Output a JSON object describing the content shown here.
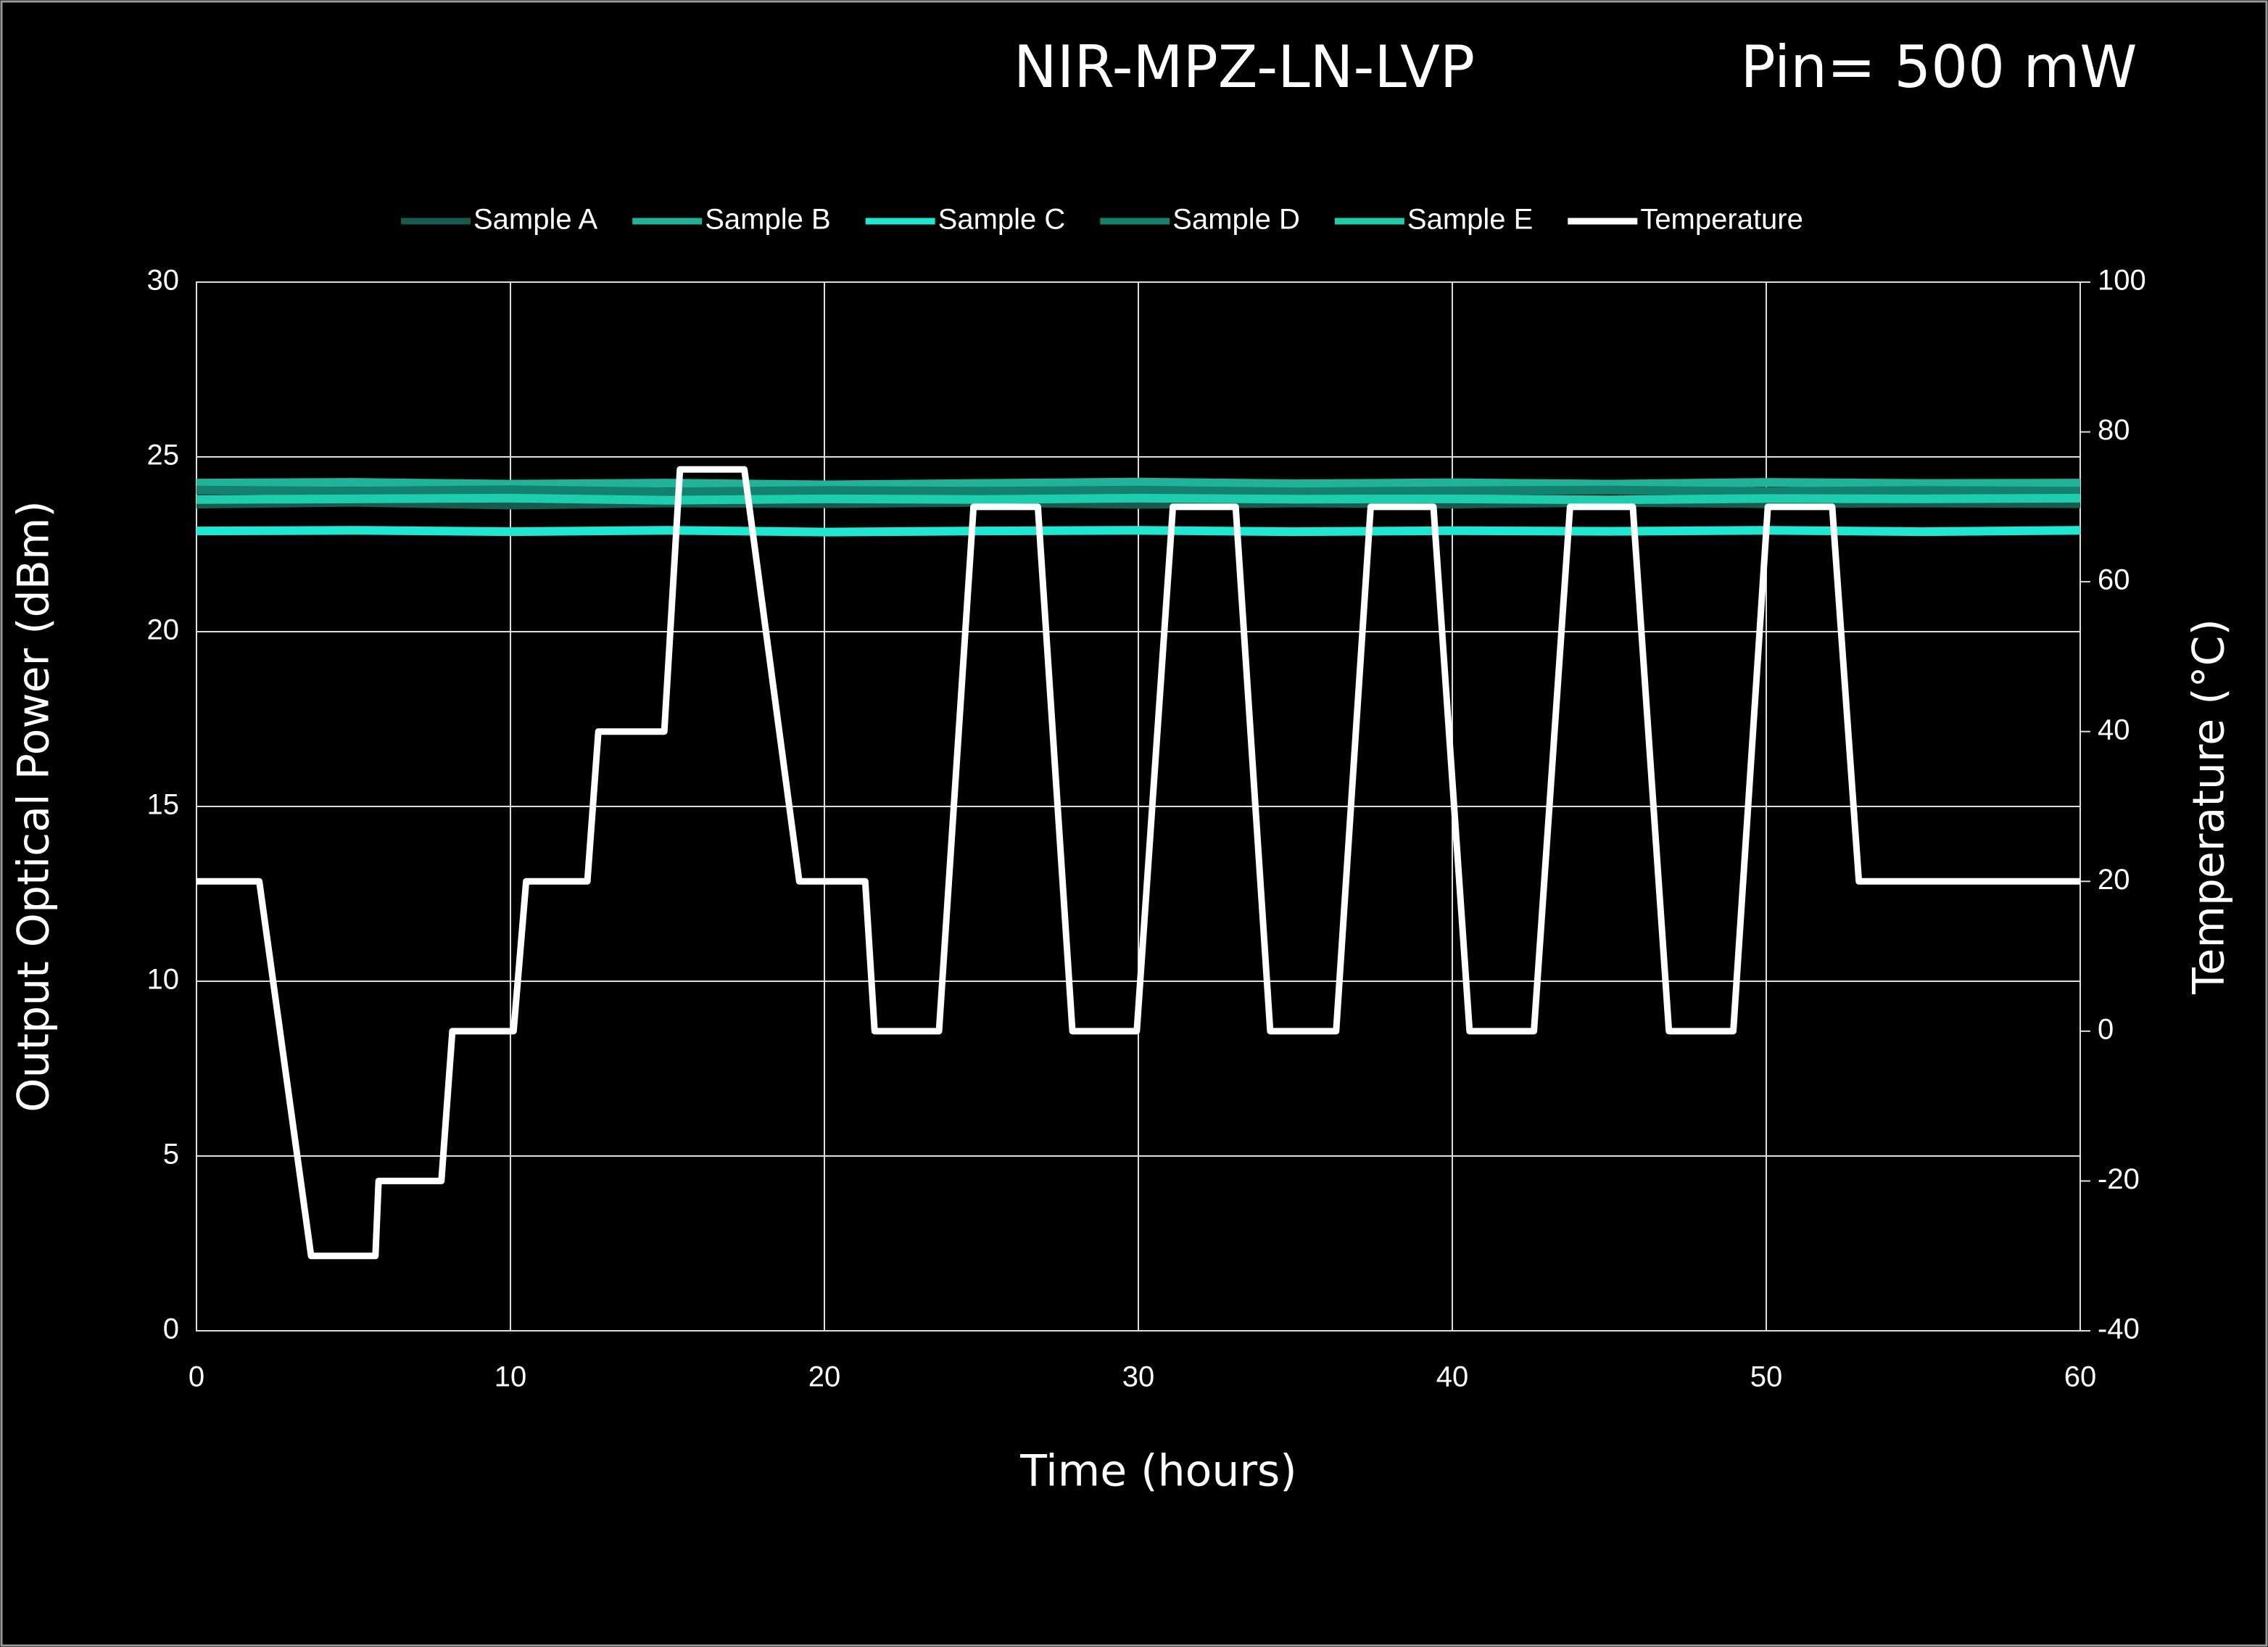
{
  "chart_data": {
    "type": "line",
    "title": "NIR-MPZ-LN-LVP",
    "annotation": "Pin= 500 mW",
    "x_label": "Time (hours)",
    "y_label": "Output Optical Power (dBm)",
    "y2_label": "Temperature (°C)",
    "x": [
      0,
      5,
      10,
      15,
      20,
      25,
      30,
      35,
      40,
      45,
      50,
      55,
      60
    ],
    "xlim": [
      0,
      60
    ],
    "xticks": [
      0,
      10,
      20,
      30,
      40,
      50,
      60
    ],
    "ylim": [
      0,
      30
    ],
    "yticks": [
      0,
      5,
      10,
      15,
      20,
      25,
      30
    ],
    "y2lim": [
      -40,
      100
    ],
    "y2ticks": [
      -40,
      -20,
      0,
      20,
      40,
      60,
      80,
      100
    ],
    "grid": true,
    "legend": "top",
    "series": [
      {
        "name": "Sample A",
        "color": "#175a4e",
        "values": [
          23.65,
          23.7,
          23.62,
          23.68,
          23.66,
          23.7,
          23.64,
          23.68,
          23.65,
          23.7,
          23.66,
          23.68,
          23.66
        ]
      },
      {
        "name": "Sample B",
        "color": "#1fb49a",
        "values": [
          24.25,
          24.27,
          24.22,
          24.25,
          24.2,
          24.24,
          24.28,
          24.23,
          24.26,
          24.22,
          24.27,
          24.24,
          24.25
        ]
      },
      {
        "name": "Sample C",
        "color": "#1de8d2",
        "values": [
          22.88,
          22.9,
          22.86,
          22.9,
          22.85,
          22.88,
          22.9,
          22.86,
          22.89,
          22.87,
          22.9,
          22.86,
          22.9
        ]
      },
      {
        "name": "Sample D",
        "color": "#14806e",
        "values": [
          24.05,
          24.02,
          24.06,
          24.0,
          24.04,
          24.02,
          24.05,
          24.0,
          24.03,
          24.05,
          24.01,
          24.04,
          24.02
        ]
      },
      {
        "name": "Sample E",
        "color": "#1cceae",
        "values": [
          23.78,
          23.8,
          23.82,
          23.76,
          23.8,
          23.78,
          23.82,
          23.79,
          23.8,
          23.77,
          23.81,
          23.8,
          23.82
        ]
      },
      {
        "name": "Temperature",
        "color": "#ffffff",
        "axis": "y2",
        "x": [
          0,
          2,
          3.65,
          5.7,
          5.8,
          7.8,
          8.15,
          10.1,
          10.5,
          12.45,
          12.8,
          14.9,
          15.4,
          17.45,
          19.2,
          21.3,
          21.6,
          23.65,
          24.75,
          26.8,
          27.9,
          29.95,
          31.1,
          33.1,
          34.2,
          36.3,
          37.4,
          39.4,
          40.55,
          42.6,
          43.75,
          45.75,
          46.9,
          48.95,
          50.05,
          52.1,
          52.95,
          60
        ],
        "values": [
          20,
          20,
          -30,
          -30,
          -20,
          -20,
          0,
          0,
          20,
          20,
          40,
          40,
          75,
          75,
          20,
          20,
          0,
          0,
          70,
          70,
          0,
          0,
          70,
          70,
          0,
          0,
          70,
          70,
          0,
          0,
          70,
          70,
          0,
          0,
          70,
          70,
          20,
          20
        ]
      }
    ]
  }
}
